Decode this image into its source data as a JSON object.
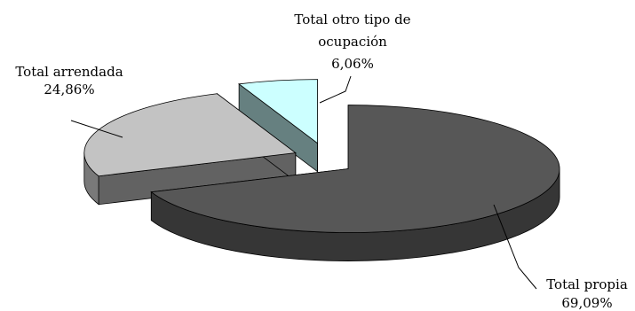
{
  "chart_data": {
    "type": "pie",
    "style": "3d-exploded",
    "slices": [
      {
        "label": "Total propia",
        "value": 69.09,
        "display": "69,09%",
        "color": "#575757"
      },
      {
        "label": "Total arrendada",
        "value": 24.86,
        "display": "24,86%",
        "color": "#c3c3c3"
      },
      {
        "label_lines": [
          "Total otro tipo de",
          "ocupación"
        ],
        "value": 6.06,
        "display": "6,06%",
        "color": "#ccffff"
      }
    ],
    "legend": "none"
  }
}
